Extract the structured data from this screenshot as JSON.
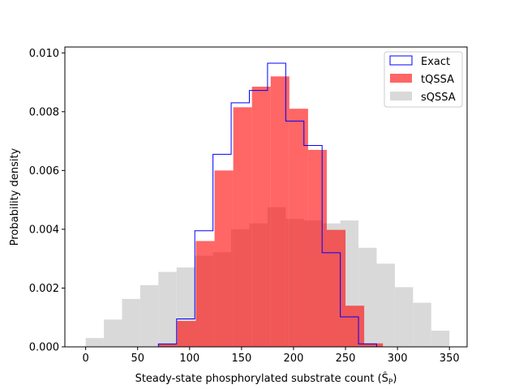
{
  "chart_data": {
    "type": "histogram",
    "title": "",
    "xlabel": "Steady-state phosphorylated substrate count (Ŝ",
    "xlabel_sub": "P",
    "xlabel_end": ")",
    "ylabel": "Probability density",
    "xlim": [
      -20,
      367
    ],
    "ylim": [
      0,
      0.0102
    ],
    "xticks": [
      0,
      50,
      100,
      150,
      200,
      250,
      300,
      350
    ],
    "xtick_labels": [
      "0",
      "50",
      "100",
      "150",
      "200",
      "250",
      "300",
      "350"
    ],
    "yticks": [
      0,
      0.002,
      0.004,
      0.006,
      0.008,
      0.01
    ],
    "ytick_labels": [
      "0.000",
      "0.002",
      "0.004",
      "0.006",
      "0.008",
      "0.010"
    ],
    "legend_position": "top-right",
    "series": [
      {
        "name": "sQSSA",
        "style": "filled",
        "color": "#d9d9d9",
        "edges": [
          0,
          17.5,
          35,
          52.5,
          70,
          87.5,
          105,
          122.5,
          140,
          157.5,
          175,
          192.5,
          210,
          227.5,
          245,
          262.5,
          280,
          297.5,
          315,
          332.5,
          350
        ],
        "values": [
          0.0003,
          0.00093,
          0.00163,
          0.0021,
          0.00255,
          0.0027,
          0.0031,
          0.00322,
          0.004,
          0.0042,
          0.00475,
          0.00435,
          0.0043,
          0.0042,
          0.0043,
          0.00337,
          0.00283,
          0.00203,
          0.0015,
          0.00055
        ]
      },
      {
        "name": "tQSSA",
        "style": "filled",
        "color": "#ff0000",
        "opacity": 0.6,
        "edges": [
          70,
          88,
          106,
          124,
          142,
          160,
          178,
          196,
          214,
          232,
          250,
          268,
          286
        ],
        "values": [
          0.0001,
          0.00088,
          0.0036,
          0.006,
          0.00815,
          0.00885,
          0.0092,
          0.0081,
          0.0067,
          0.00398,
          0.0014,
          0.00012
        ]
      },
      {
        "name": "Exact",
        "style": "step",
        "color": "#0000ff",
        "edges": [
          70,
          87.5,
          105,
          122.5,
          140,
          157.5,
          175,
          192.5,
          210,
          227.5,
          245,
          262.5,
          280
        ],
        "values": [
          0.0001,
          0.00095,
          0.00395,
          0.00655,
          0.0083,
          0.00872,
          0.00965,
          0.00768,
          0.00685,
          0.0032,
          0.00102,
          0.0001
        ]
      }
    ],
    "legend": [
      "Exact",
      "tQSSA",
      "sQSSA"
    ]
  }
}
